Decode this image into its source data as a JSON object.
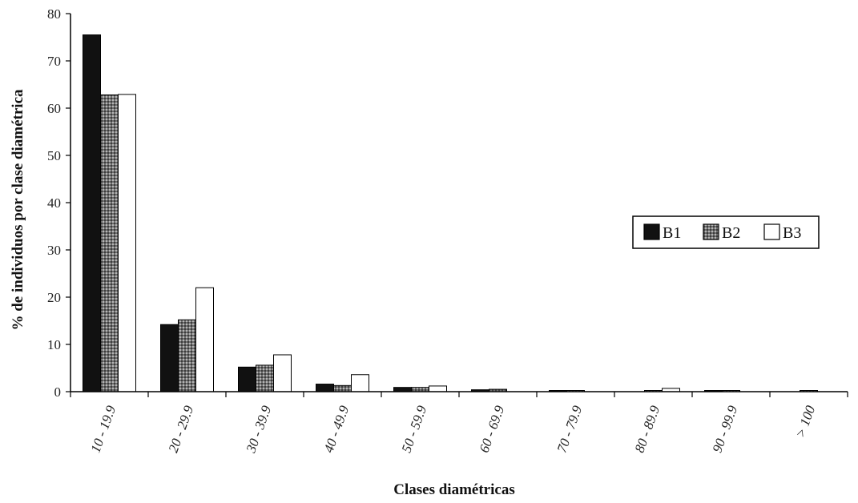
{
  "chart_data": {
    "type": "bar",
    "title": "",
    "xlabel": "Clases diamétricas",
    "ylabel": "% de individuos por  clase diamétrica",
    "categories": [
      "10 - 19.9",
      "20 - 29.9",
      "30 - 39.9",
      "40 - 49.9",
      "50 - 59.9",
      "60 - 69.9",
      "70 - 79.9",
      "80 - 89.9",
      "90 - 99.9",
      "> 100"
    ],
    "series": [
      {
        "name": "B1",
        "values": [
          75.5,
          14.2,
          5.2,
          1.6,
          0.9,
          0.4,
          0.2,
          0.0,
          0.2,
          0.0
        ],
        "fill": "#111111"
      },
      {
        "name": "B2",
        "values": [
          62.8,
          15.2,
          5.6,
          1.3,
          0.9,
          0.5,
          0.2,
          0.2,
          0.1,
          0.2
        ],
        "fill": "#8a8a8a"
      },
      {
        "name": "B3",
        "values": [
          62.9,
          22.0,
          7.8,
          3.6,
          1.2,
          0.0,
          0.0,
          0.7,
          0.0,
          0.0
        ],
        "fill": "#ffffff"
      }
    ],
    "ylim": [
      0,
      80
    ],
    "yticks": [
      0,
      10,
      20,
      30,
      40,
      50,
      60,
      70,
      80
    ],
    "grid": false,
    "legend": "right"
  }
}
